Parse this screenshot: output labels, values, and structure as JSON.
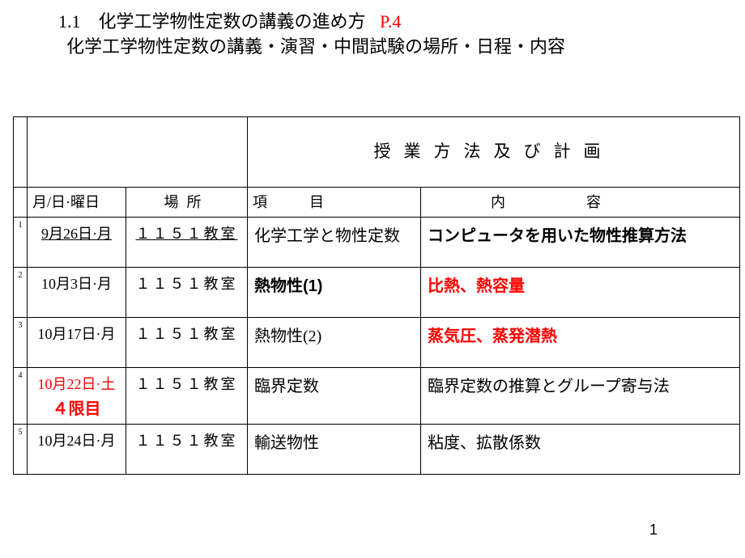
{
  "heading": {
    "section_number": "1.1",
    "title": "化学工学物性定数の講義の進め方",
    "page_ref": "P.4",
    "subtitle": "化学工学物性定数の講義・演習・中間試験の場所・日程・内容"
  },
  "table": {
    "title": "授業方法及び計画",
    "columns": {
      "date": "月/日·曜日",
      "place_c1": "場",
      "place_c2": "所",
      "item_c1": "項",
      "item_c2": "目",
      "content_c1": "内",
      "content_c2": "容"
    },
    "rows": [
      {
        "num": "1",
        "date": "9月26日·月",
        "date_underline": true,
        "place": "１１５１教室",
        "place_underline": true,
        "item": "化学工学と物性定数",
        "item_bold": false,
        "content": "コンピュータを用いた物性推算方法",
        "content_bold": true,
        "content_red": false
      },
      {
        "num": "2",
        "date": "10月3日·月",
        "place": "１１５１教室",
        "item": "熱物性(1)",
        "item_bold": true,
        "content": "比熱、熱容量",
        "content_bold": true,
        "content_red": true
      },
      {
        "num": "3",
        "date": "10月17日·月",
        "place": "１１５１教室",
        "item": "熱物性(2)",
        "content": "蒸気圧、蒸発潜熱",
        "content_bold": true,
        "content_red": true
      },
      {
        "num": "4",
        "date": "10月22日·土",
        "date_red": true,
        "date_sub": "４限目",
        "date_sub_bold": true,
        "place": "１１５１教室",
        "item": "臨界定数",
        "content": "臨界定数の推算とグループ寄与法"
      },
      {
        "num": "5",
        "date": "10月24日·月",
        "place": "１１５１教室",
        "item": "輸送物性",
        "content": "粘度、拡散係数"
      }
    ]
  },
  "page_number": "1",
  "colors": {
    "red": "#ff0000",
    "black": "#000000",
    "background": "#ffffff"
  }
}
